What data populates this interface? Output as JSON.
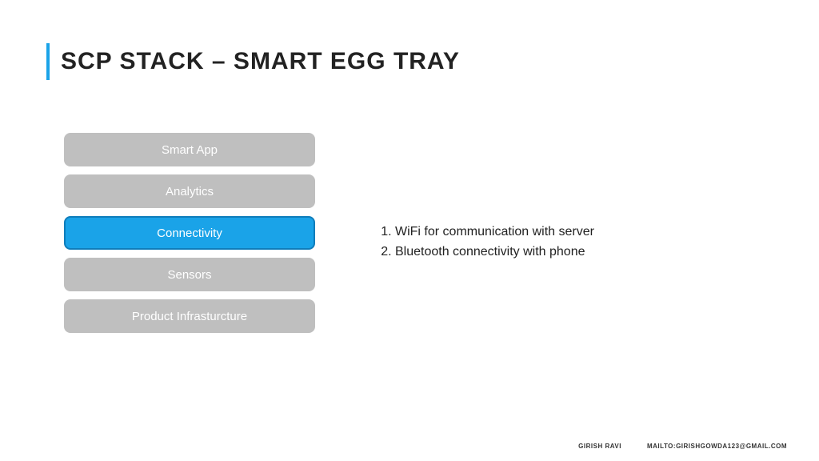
{
  "title": {
    "text": "SCP STACK – SMART EGG TRAY",
    "fontsize": 30,
    "color": "#222222",
    "accent_color": "#1aa3e8"
  },
  "stack": {
    "item_width": 314,
    "item_height": 42,
    "gap": 10,
    "border_radius": 8,
    "inactive_bg": "#bfbfbf",
    "active_bg": "#1aa3e8",
    "active_border": "#0f7dbb",
    "text_color": "#ffffff",
    "font_size": 15,
    "items": [
      {
        "label": "Smart App",
        "active": false
      },
      {
        "label": "Analytics",
        "active": false
      },
      {
        "label": "Connectivity",
        "active": true
      },
      {
        "label": "Sensors",
        "active": false
      },
      {
        "label": "Product Infrasturcture",
        "active": false
      }
    ]
  },
  "details": {
    "font_size": 16,
    "color": "#222222",
    "items": [
      "WiFi for communication with server",
      "Bluetooth connectivity with phone"
    ]
  },
  "footer": {
    "author": "GIRISH RAVI",
    "contact": "MAILTO:GIRISHGOWDA123@GMAIL.COM",
    "font_size": 8,
    "color": "#333333"
  },
  "background_color": "#ffffff"
}
